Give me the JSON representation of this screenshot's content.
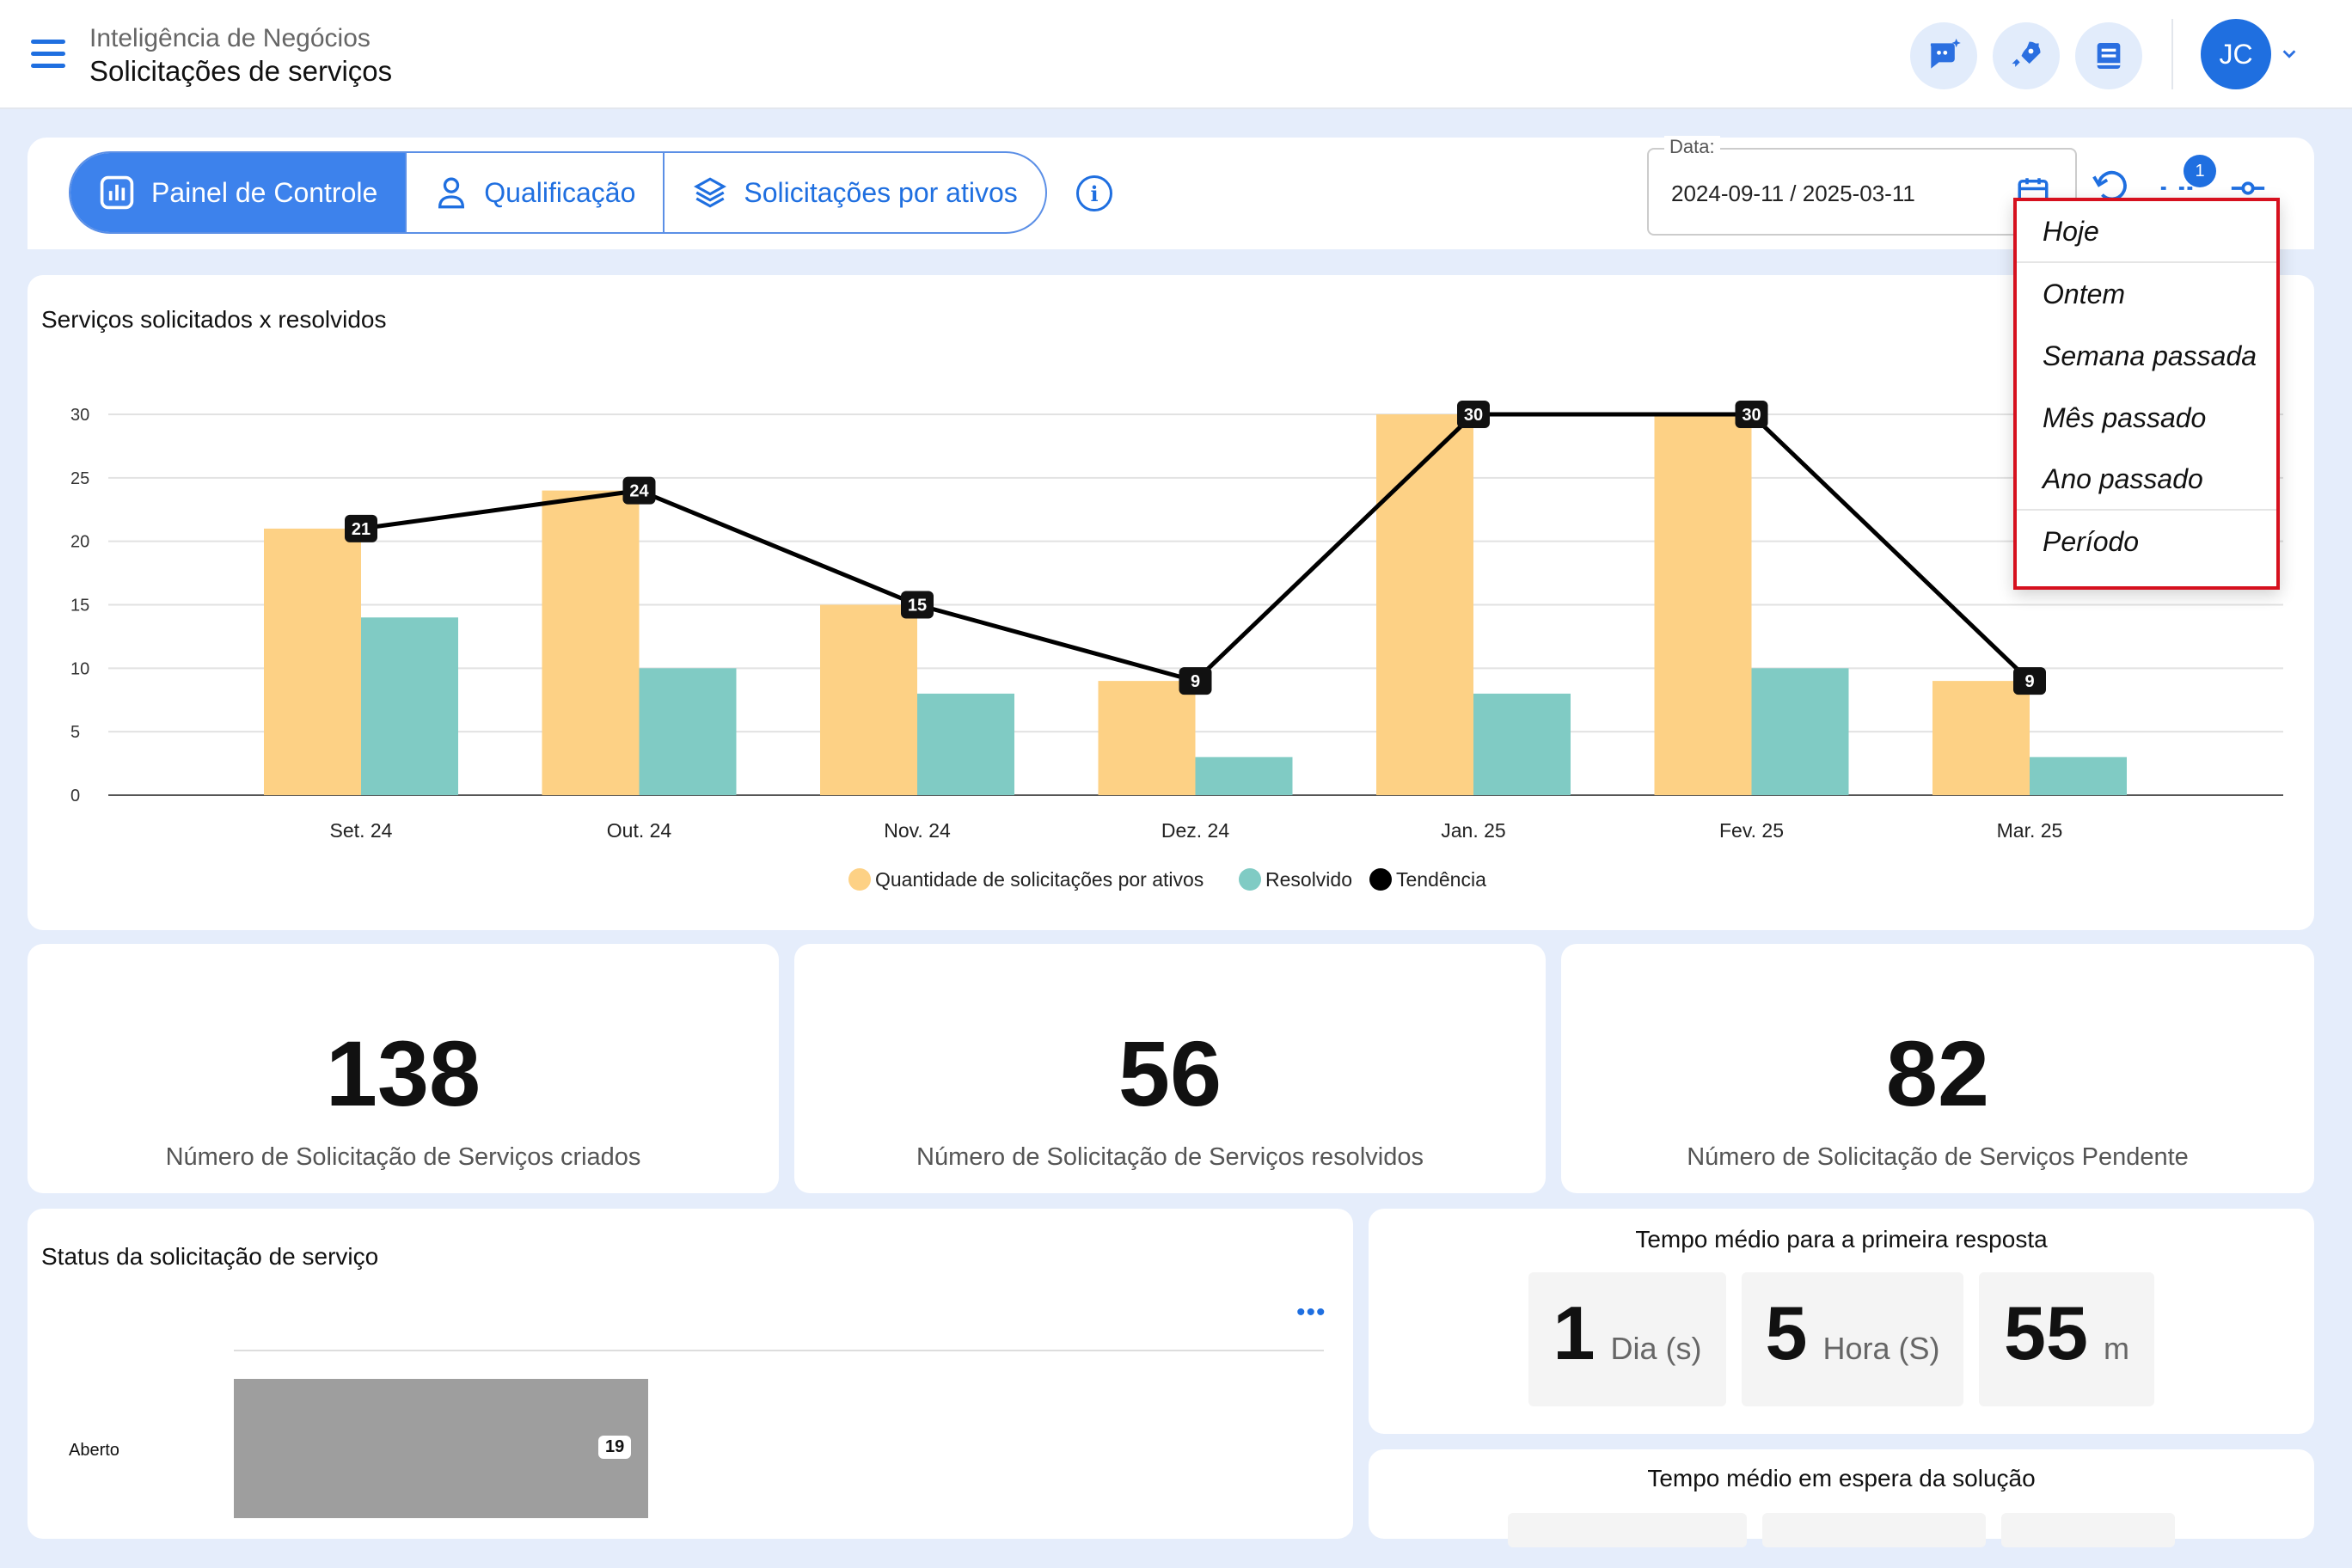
{
  "header": {
    "section": "Inteligência de Negócios",
    "title": "Solicitações de serviços",
    "avatar_initials": "JC"
  },
  "tabs": [
    {
      "label": "Painel de Controle",
      "icon": "bar-chart-icon",
      "active": true
    },
    {
      "label": "Qualificação",
      "icon": "user-icon",
      "active": false
    },
    {
      "label": "Solicitações por ativos",
      "icon": "layers-icon",
      "active": false
    }
  ],
  "date_filter": {
    "label": "Data:",
    "value": "2024-09-11 / 2025-03-11",
    "filter_badge": "1"
  },
  "date_menu": {
    "items": [
      "Hoje",
      "Ontem",
      "Semana passada",
      "Mês passado",
      "Ano passado",
      "Período"
    ]
  },
  "chart": {
    "title": "Serviços solicitados x resolvidos"
  },
  "chart_data": {
    "type": "bar",
    "categories": [
      "Set. 24",
      "Out. 24",
      "Nov. 24",
      "Dez. 24",
      "Jan. 25",
      "Fev. 25",
      "Mar. 25"
    ],
    "series": [
      {
        "name": "Quantidade de solicitações por ativos",
        "type": "bar",
        "color": "#fdd185",
        "values": [
          21,
          24,
          15,
          9,
          30,
          30,
          9
        ]
      },
      {
        "name": "Resolvido",
        "type": "bar",
        "color": "#80cbc4",
        "values": [
          14,
          10,
          8,
          3,
          8,
          10,
          3
        ]
      },
      {
        "name": "Tendência",
        "type": "line",
        "color": "#000000",
        "values": [
          21,
          24,
          15,
          9,
          30,
          30,
          9
        ]
      }
    ],
    "yticks": [
      0,
      5,
      10,
      15,
      20,
      25,
      30
    ],
    "ylim": [
      0,
      30
    ],
    "grid": true,
    "legend": "bottom"
  },
  "stats": [
    {
      "value": "138",
      "label": "Número de Solicitação de Serviços criados"
    },
    {
      "value": "56",
      "label": "Número de Solicitação de Serviços resolvidos"
    },
    {
      "value": "82",
      "label": "Número de Solicitação de Serviços Pendente"
    }
  ],
  "status_panel": {
    "title": "Status da solicitação de serviço",
    "bars": [
      {
        "category": "Aberto",
        "value": 19,
        "max": 50,
        "color": "#9e9e9e"
      }
    ]
  },
  "first_response": {
    "title": "Tempo médio para a primeira resposta",
    "days": "1",
    "days_unit": "Dia (s)",
    "hours": "5",
    "hours_unit": "Hora (S)",
    "minutes": "55",
    "minutes_unit": "m"
  },
  "waiting": {
    "title": "Tempo médio em espera da solução"
  }
}
